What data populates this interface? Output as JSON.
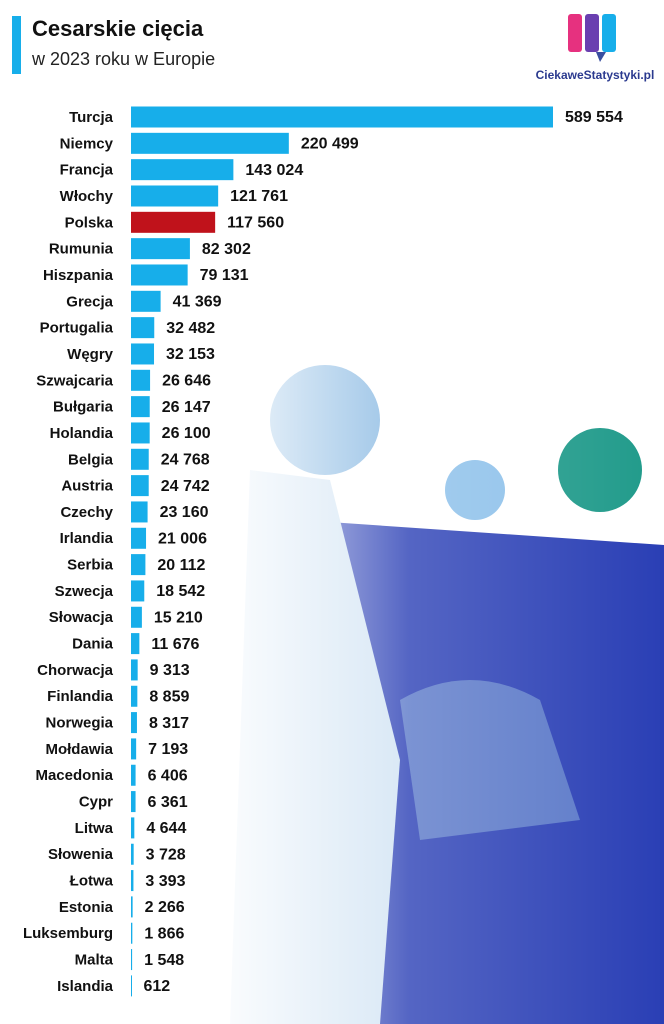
{
  "chart_data": {
    "type": "barh",
    "title": "Cesarskie cięcia",
    "subtitle": "w 2023 roku w Europie",
    "source": "CiekaweStatystyki.pl",
    "categories": [
      "Turcja",
      "Niemcy",
      "Francja",
      "Włochy",
      "Polska",
      "Rumunia",
      "Hiszpania",
      "Grecja",
      "Portugalia",
      "Węgry",
      "Szwajcaria",
      "Bułgaria",
      "Holandia",
      "Belgia",
      "Austria",
      "Czechy",
      "Irlandia",
      "Serbia",
      "Szwecja",
      "Słowacja",
      "Dania",
      "Chorwacja",
      "Finlandia",
      "Norwegia",
      "Mołdawia",
      "Macedonia",
      "Cypr",
      "Litwa",
      "Słowenia",
      "Łotwa",
      "Estonia",
      "Luksemburg",
      "Malta",
      "Islandia"
    ],
    "values": [
      589554,
      220499,
      143024,
      121761,
      117560,
      82302,
      79131,
      41369,
      32482,
      32153,
      26646,
      26147,
      26100,
      24768,
      24742,
      23160,
      21006,
      20112,
      18542,
      15210,
      11676,
      9313,
      8859,
      8317,
      7193,
      6406,
      6361,
      4644,
      3728,
      3393,
      2266,
      1866,
      1548,
      612
    ],
    "value_labels": [
      "589 554",
      "220 499",
      "143 024",
      "121 761",
      "117 560",
      "82 302",
      "79 131",
      "41 369",
      "32 482",
      "32 153",
      "26 646",
      "26 147",
      "26 100",
      "24 768",
      "24 742",
      "23 160",
      "21 006",
      "20 112",
      "18 542",
      "15 210",
      "11 676",
      "9 313",
      "8 859",
      "8 317",
      "7 193",
      "6 406",
      "6 361",
      "4 644",
      "3 728",
      "3 393",
      "2 266",
      "1 866",
      "1 548",
      "612"
    ],
    "color": "#17aeea",
    "highlight": {
      "index": 4,
      "color": "#c0121b"
    }
  }
}
